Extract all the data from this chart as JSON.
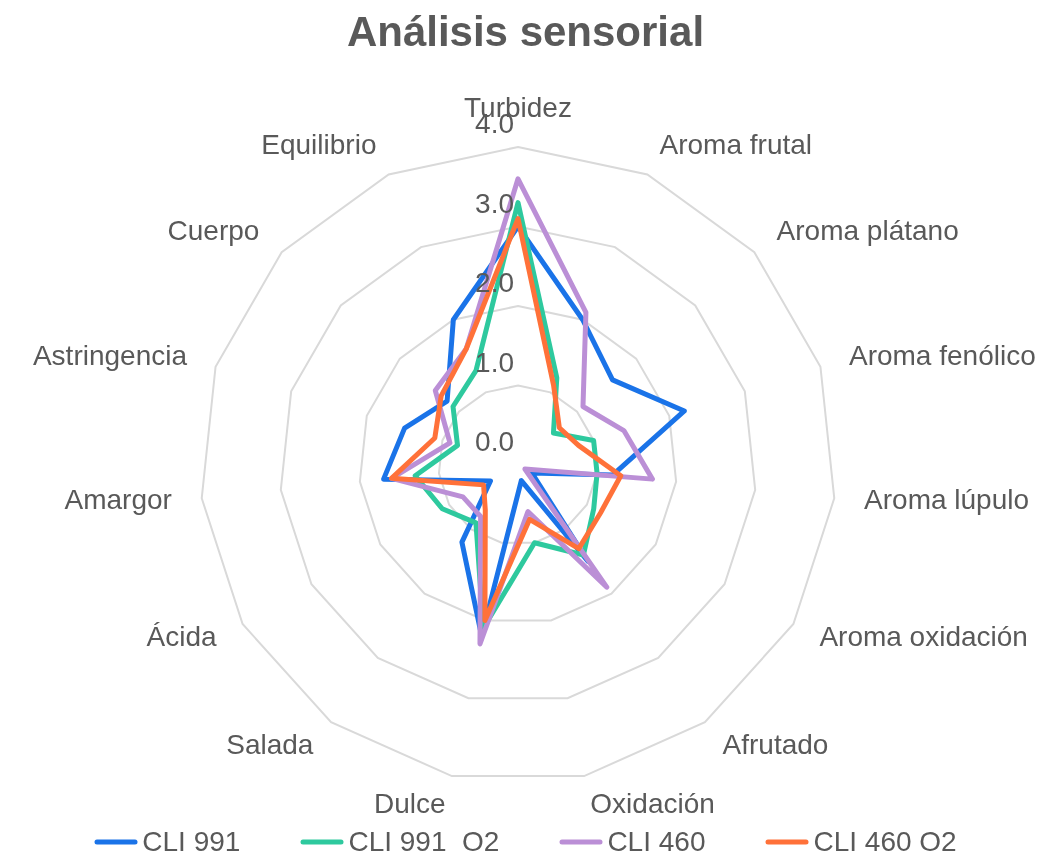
{
  "chart_data": {
    "type": "radar",
    "title": "Análisis sensorial",
    "categories": [
      "Turbidez",
      "Aroma frutal",
      "Aroma plátano",
      "Aroma fenólico",
      "Aroma lúpulo",
      "Aroma oxidación",
      "Afrutado",
      "Oxidación",
      "Dulce",
      "Salada",
      "Ácida",
      "Amargor",
      "Astringencia",
      "Cuerpo",
      "Equilibrio"
    ],
    "series": [
      {
        "name": "CLI 991",
        "color": "#1a73e8",
        "values": [
          3.0,
          2.0,
          1.6,
          2.2,
          1.2,
          0.2,
          1.5,
          0.2,
          2.2,
          1.2,
          0.4,
          1.7,
          1.5,
          1.2,
          2.0
        ]
      },
      {
        "name": "CLI 991  O2",
        "color": "#2ec99e",
        "values": [
          3.3,
          1.2,
          0.6,
          1.0,
          1.0,
          1.1,
          1.4,
          1.0,
          2.1,
          0.9,
          1.1,
          1.3,
          0.8,
          1.1,
          1.3
        ]
      },
      {
        "name": "CLI 460",
        "color": "#bb8fd6",
        "values": [
          3.6,
          2.1,
          1.1,
          1.4,
          1.7,
          0.1,
          1.9,
          0.6,
          2.3,
          0.8,
          0.8,
          1.6,
          0.9,
          1.4,
          1.6
        ]
      },
      {
        "name": "CLI 460 O2",
        "color": "#ff7139",
        "values": [
          3.1,
          1.1,
          0.7,
          0.8,
          1.3,
          1.2,
          1.3,
          0.7,
          2.0,
          0.7,
          0.5,
          1.6,
          1.1,
          1.3,
          1.6
        ]
      }
    ],
    "ylim": [
      0,
      4
    ],
    "yticks": [
      {
        "value": 0,
        "label": "0.0"
      },
      {
        "value": 1,
        "label": "1.0"
      },
      {
        "value": 2,
        "label": "2.0"
      },
      {
        "value": 3,
        "label": "3.0"
      },
      {
        "value": 4,
        "label": "4.0"
      }
    ],
    "grid": true,
    "legend": "bottom",
    "marker": "none",
    "line_style": "solid"
  }
}
